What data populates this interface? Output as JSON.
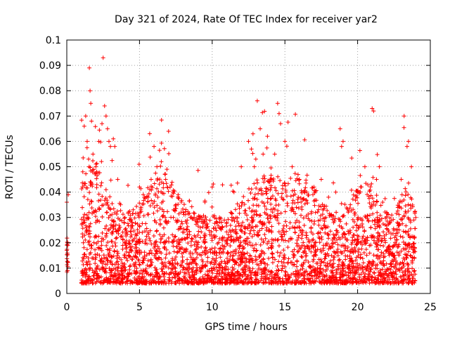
{
  "chart_data": {
    "type": "scatter",
    "title": "Day 321 of 2024, Rate Of TEC Index for receiver yar2",
    "xlabel": "GPS time / hours",
    "ylabel": "ROTI / TECUs",
    "xlim": [
      0,
      25
    ],
    "ylim": [
      0,
      0.1
    ],
    "xticks": [
      "0",
      "5",
      "10",
      "15",
      "20",
      "25"
    ],
    "yticks": [
      "0",
      "0.01",
      "0.02",
      "0.03",
      "0.04",
      "0.05",
      "0.06",
      "0.07",
      "0.08",
      "0.09",
      "0.1"
    ],
    "grid": true,
    "marker": "+",
    "color": "#ff0000",
    "series": [
      {
        "name": "ROTI",
        "description": "dense point cloud of ROTI samples from all satellites, mostly 0.005-0.025 TECU/min with activity spikes",
        "x": [
          0.0,
          0.0,
          0.05,
          0.1,
          1.1,
          1.2,
          1.3,
          1.4,
          1.5,
          1.55,
          1.6,
          1.65,
          1.7,
          1.8,
          2.0,
          2.2,
          2.5,
          2.6,
          2.7,
          2.8,
          2.9,
          3.0,
          3.2,
          3.3,
          3.5,
          3.7,
          4.0,
          4.5,
          5.0,
          5.5,
          5.8,
          6.0,
          6.2,
          6.5,
          6.8,
          7.0,
          7.3,
          7.5,
          8.0,
          8.5,
          9.0,
          9.5,
          10.0,
          10.5,
          11.0,
          11.5,
          12.0,
          12.5,
          12.7,
          12.9,
          13.0,
          13.1,
          13.3,
          13.5,
          13.8,
          14.0,
          14.3,
          14.5,
          14.6,
          14.7,
          15.0,
          15.5,
          16.0,
          16.5,
          17.0,
          17.5,
          18.0,
          18.5,
          18.8,
          18.9,
          19.0,
          19.5,
          20.0,
          20.5,
          21.0,
          21.1,
          21.3,
          21.5,
          22.0,
          22.5,
          23.0,
          23.2,
          23.4,
          23.5,
          23.7,
          24.0
        ],
        "y": [
          0.036,
          0.017,
          0.009,
          0.039,
          0.048,
          0.066,
          0.07,
          0.06,
          0.053,
          0.089,
          0.08,
          0.075,
          0.068,
          0.055,
          0.05,
          0.06,
          0.093,
          0.074,
          0.07,
          0.065,
          0.06,
          0.058,
          0.061,
          0.058,
          0.045,
          0.035,
          0.03,
          0.028,
          0.042,
          0.038,
          0.045,
          0.058,
          0.05,
          0.052,
          0.045,
          0.064,
          0.04,
          0.035,
          0.032,
          0.03,
          0.028,
          0.036,
          0.042,
          0.03,
          0.028,
          0.04,
          0.05,
          0.06,
          0.057,
          0.05,
          0.053,
          0.076,
          0.065,
          0.055,
          0.062,
          0.045,
          0.055,
          0.075,
          0.071,
          0.067,
          0.06,
          0.05,
          0.045,
          0.04,
          0.042,
          0.045,
          0.038,
          0.04,
          0.065,
          0.058,
          0.06,
          0.035,
          0.04,
          0.05,
          0.073,
          0.072,
          0.045,
          0.05,
          0.032,
          0.025,
          0.045,
          0.07,
          0.058,
          0.06,
          0.05,
          0.03
        ]
      }
    ]
  }
}
